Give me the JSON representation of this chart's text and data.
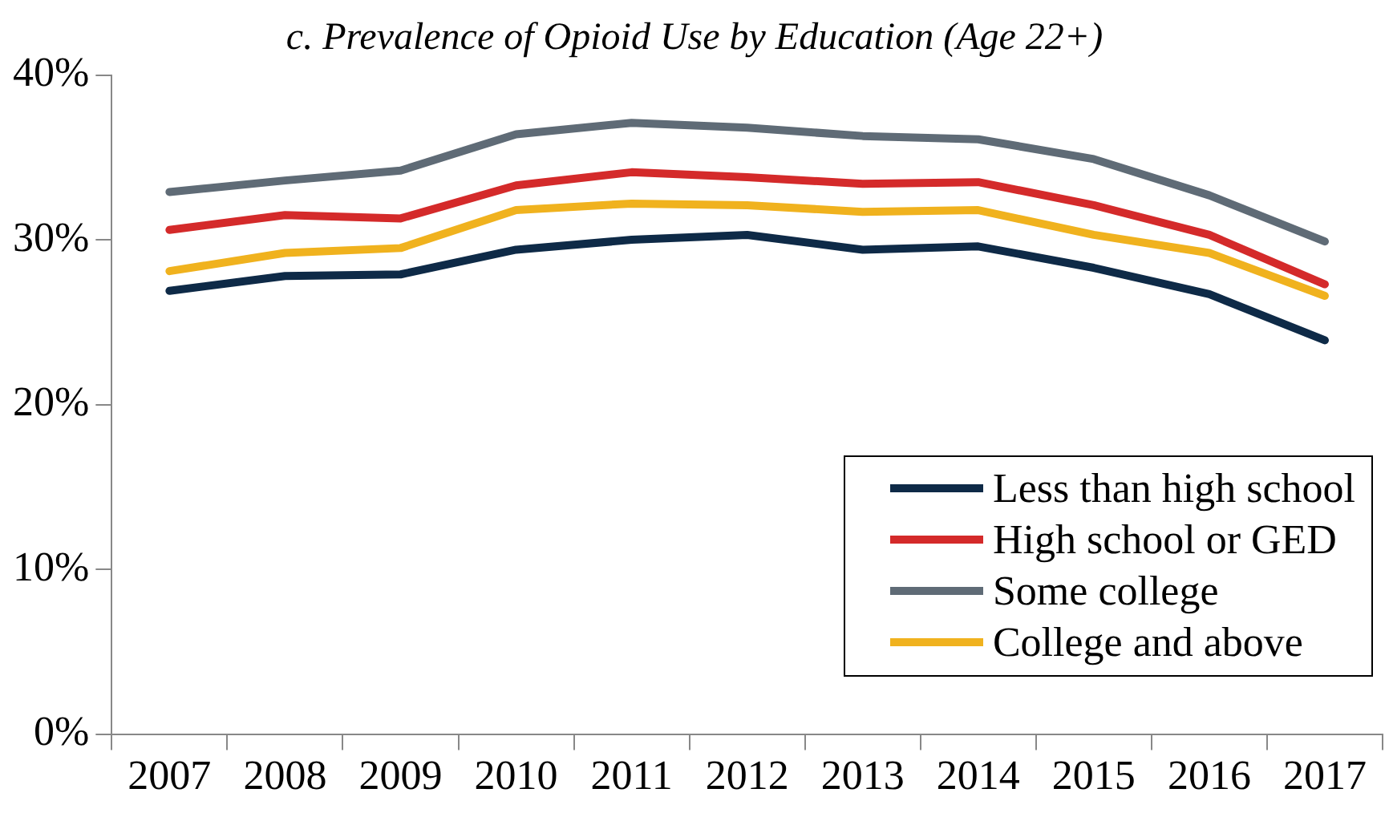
{
  "chart_data": {
    "type": "line",
    "title": "c. Prevalence of Opioid Use by Education (Age 22+)",
    "categories": [
      "2007",
      "2008",
      "2009",
      "2010",
      "2011",
      "2012",
      "2013",
      "2014",
      "2015",
      "2016",
      "2017"
    ],
    "series": [
      {
        "name": "Less than high school",
        "color": "#0e2a47",
        "values": [
          26.9,
          27.8,
          27.9,
          29.4,
          30.0,
          30.3,
          29.4,
          29.6,
          28.3,
          26.7,
          23.9
        ]
      },
      {
        "name": "High school or GED",
        "color": "#d42a2a",
        "values": [
          30.6,
          31.5,
          31.3,
          33.3,
          34.1,
          33.8,
          33.4,
          33.5,
          32.1,
          30.3,
          27.3
        ]
      },
      {
        "name": "Some college",
        "color": "#5f6b76",
        "values": [
          32.9,
          33.6,
          34.2,
          36.4,
          37.1,
          36.8,
          36.3,
          36.1,
          34.9,
          32.7,
          29.9
        ]
      },
      {
        "name": "College and above",
        "color": "#f0b21e",
        "values": [
          28.1,
          29.2,
          29.5,
          31.8,
          32.2,
          32.1,
          31.7,
          31.8,
          30.3,
          29.2,
          26.6
        ]
      }
    ],
    "ylim": [
      0,
      40
    ],
    "yticks": [
      {
        "value": 0,
        "label": "0%"
      },
      {
        "value": 10,
        "label": "10%"
      },
      {
        "value": 20,
        "label": "20%"
      },
      {
        "value": 30,
        "label": "30%"
      },
      {
        "value": 40,
        "label": "40%"
      }
    ],
    "grid": false,
    "legend": "bottom right",
    "marker": "none",
    "line_style": "solid"
  }
}
